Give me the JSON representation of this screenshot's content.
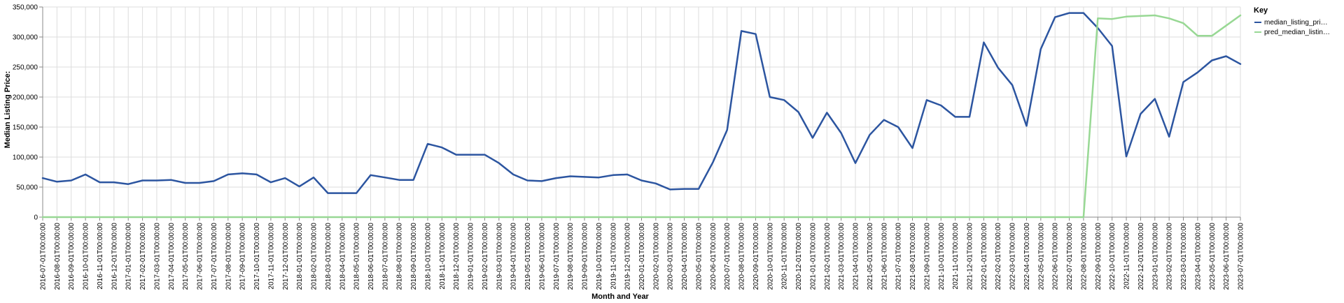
{
  "chart_data": {
    "type": "line",
    "xlabel": "Month and Year",
    "ylabel": "Median Listing Price:",
    "ylim": [
      0,
      350000
    ],
    "y_ticks": [
      0,
      50000,
      100000,
      150000,
      200000,
      250000,
      300000,
      350000
    ],
    "y_tick_labels": [
      "0",
      "50,000",
      "100,000",
      "150,000",
      "200,000",
      "250,000",
      "300,000",
      "350,000"
    ],
    "grid": true,
    "legend": {
      "title": "Key",
      "placement": "right",
      "entries": [
        "median_listing_pri…",
        "pred_median_listin…"
      ]
    },
    "x": [
      "2016-07-01T00:00:00",
      "2016-08-01T00:00:00",
      "2016-09-01T00:00:00",
      "2016-10-01T00:00:00",
      "2016-11-01T00:00:00",
      "2016-12-01T00:00:00",
      "2017-01-01T00:00:00",
      "2017-02-01T00:00:00",
      "2017-03-01T00:00:00",
      "2017-04-01T00:00:00",
      "2017-05-01T00:00:00",
      "2017-06-01T00:00:00",
      "2017-07-01T00:00:00",
      "2017-08-01T00:00:00",
      "2017-09-01T00:00:00",
      "2017-10-01T00:00:00",
      "2017-11-01T00:00:00",
      "2017-12-01T00:00:00",
      "2018-01-01T00:00:00",
      "2018-02-01T00:00:00",
      "2018-03-01T00:00:00",
      "2018-04-01T00:00:00",
      "2018-05-01T00:00:00",
      "2018-06-01T00:00:00",
      "2018-07-01T00:00:00",
      "2018-08-01T00:00:00",
      "2018-09-01T00:00:00",
      "2018-10-01T00:00:00",
      "2018-11-01T00:00:00",
      "2018-12-01T00:00:00",
      "2019-01-01T00:00:00",
      "2019-02-01T00:00:00",
      "2019-03-01T00:00:00",
      "2019-04-01T00:00:00",
      "2019-05-01T00:00:00",
      "2019-06-01T00:00:00",
      "2019-07-01T00:00:00",
      "2019-08-01T00:00:00",
      "2019-09-01T00:00:00",
      "2019-10-01T00:00:00",
      "2019-11-01T00:00:00",
      "2019-12-01T00:00:00",
      "2020-01-01T00:00:00",
      "2020-02-01T00:00:00",
      "2020-03-01T00:00:00",
      "2020-04-01T00:00:00",
      "2020-05-01T00:00:00",
      "2020-06-01T00:00:00",
      "2020-07-01T00:00:00",
      "2020-08-01T00:00:00",
      "2020-09-01T00:00:00",
      "2020-10-01T00:00:00",
      "2020-11-01T00:00:00",
      "2020-12-01T00:00:00",
      "2021-01-01T00:00:00",
      "2021-02-01T00:00:00",
      "2021-03-01T00:00:00",
      "2021-04-01T00:00:00",
      "2021-05-01T00:00:00",
      "2021-06-01T00:00:00",
      "2021-07-01T00:00:00",
      "2021-08-01T00:00:00",
      "2021-09-01T00:00:00",
      "2021-10-01T00:00:00",
      "2021-11-01T00:00:00",
      "2021-12-01T00:00:00",
      "2022-01-01T00:00:00",
      "2022-02-01T00:00:00",
      "2022-03-01T00:00:00",
      "2022-04-01T00:00:00",
      "2022-05-01T00:00:00",
      "2022-06-01T00:00:00",
      "2022-07-01T00:00:00",
      "2022-08-01T00:00:00",
      "2022-09-01T00:00:00",
      "2022-10-01T00:00:00",
      "2022-11-01T00:00:00",
      "2022-12-01T00:00:00",
      "2023-01-01T00:00:00",
      "2023-02-01T00:00:00",
      "2023-03-01T00:00:00",
      "2023-04-01T00:00:00",
      "2023-05-01T00:00:00",
      "2023-06-01T00:00:00",
      "2023-07-01T00:00:00"
    ],
    "series": [
      {
        "name": "median_listing_pri…",
        "color": "#2c55a0",
        "values": [
          65000,
          59000,
          61000,
          71000,
          58000,
          58000,
          55000,
          61000,
          61000,
          62000,
          57000,
          57000,
          60000,
          71000,
          73000,
          71000,
          58000,
          65000,
          51000,
          66000,
          40000,
          40000,
          40000,
          70000,
          66000,
          62000,
          62000,
          122000,
          116000,
          104000,
          104000,
          104000,
          90000,
          71000,
          61000,
          60000,
          65000,
          68000,
          67000,
          66000,
          70000,
          71000,
          61000,
          56000,
          46000,
          47000,
          47000,
          91000,
          145000,
          310000,
          305000,
          200000,
          195000,
          175000,
          132000,
          174000,
          140000,
          90000,
          137000,
          162000,
          150000,
          115000,
          195000,
          186000,
          167000,
          167000,
          291000,
          249000,
          220000,
          152000,
          280000,
          333000,
          340000,
          340000,
          315000,
          285000,
          101000,
          172000,
          197000,
          134000,
          225000,
          241000,
          261000,
          268000,
          255000
        ]
      },
      {
        "name": "pred_median_listin…",
        "color": "#98d894",
        "values": [
          0,
          0,
          0,
          0,
          0,
          0,
          0,
          0,
          0,
          0,
          0,
          0,
          0,
          0,
          0,
          0,
          0,
          0,
          0,
          0,
          0,
          0,
          0,
          0,
          0,
          0,
          0,
          0,
          0,
          0,
          0,
          0,
          0,
          0,
          0,
          0,
          0,
          0,
          0,
          0,
          0,
          0,
          0,
          0,
          0,
          0,
          0,
          0,
          0,
          0,
          0,
          0,
          0,
          0,
          0,
          0,
          0,
          0,
          0,
          0,
          0,
          0,
          0,
          0,
          0,
          0,
          0,
          0,
          0,
          0,
          0,
          0,
          0,
          0,
          331000,
          330000,
          334000,
          335000,
          336000,
          331000,
          323000,
          302000,
          302000,
          319000,
          336000
        ]
      }
    ]
  }
}
